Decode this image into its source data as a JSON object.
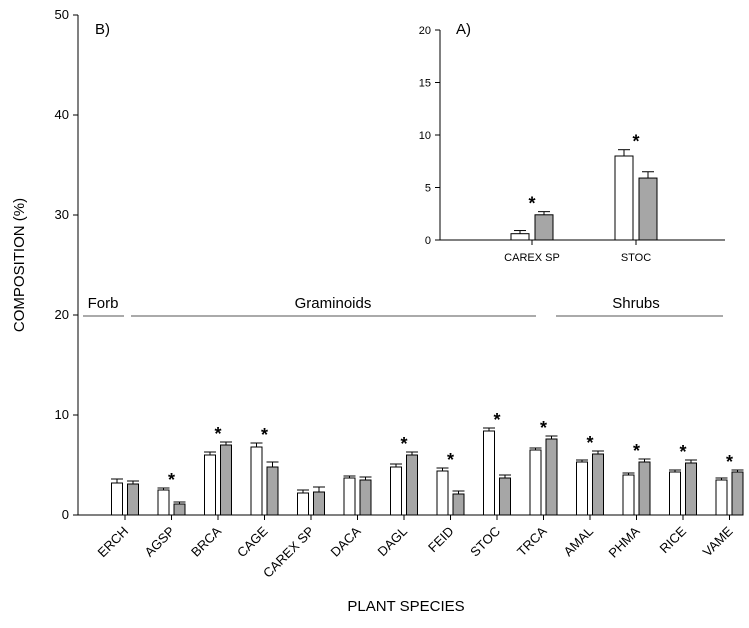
{
  "colors": {
    "group_a_fill": "#ffffff",
    "group_b_fill": "#a6a6a6",
    "axis": "#000000"
  },
  "chart_data": [
    {
      "panel": "B)",
      "type": "bar",
      "xlabel": "PLANT SPECIES",
      "ylabel": "COMPOSITION (%)",
      "ylim": [
        0,
        50
      ],
      "yticks": [
        0,
        10,
        20,
        30,
        40,
        50
      ],
      "grid": false,
      "categories": [
        "ERCH",
        "AGSP",
        "BRCA",
        "CAGE",
        "CAREX SP",
        "DACA",
        "DAGL",
        "FEID",
        "STOC",
        "TRCA",
        "AMAL",
        "PHMA",
        "RICE",
        "VAME"
      ],
      "series": [
        {
          "fill": "#ffffff",
          "values": [
            3.2,
            2.5,
            6.0,
            6.8,
            2.2,
            3.7,
            4.8,
            4.4,
            8.4,
            6.5,
            5.3,
            4.0,
            4.3,
            3.5
          ],
          "errors": [
            0.4,
            0.2,
            0.3,
            0.4,
            0.3,
            0.2,
            0.3,
            0.3,
            0.3,
            0.2,
            0.2,
            0.2,
            0.2,
            0.2
          ]
        },
        {
          "fill": "#a6a6a6",
          "values": [
            3.1,
            1.1,
            7.0,
            4.8,
            2.3,
            3.5,
            6.0,
            2.1,
            3.7,
            7.6,
            6.1,
            5.3,
            5.2,
            4.3
          ],
          "errors": [
            0.3,
            0.2,
            0.3,
            0.5,
            0.5,
            0.3,
            0.3,
            0.3,
            0.3,
            0.3,
            0.3,
            0.3,
            0.3,
            0.2
          ]
        }
      ],
      "significant": [
        false,
        true,
        true,
        true,
        false,
        false,
        true,
        true,
        true,
        true,
        true,
        true,
        true,
        true
      ],
      "significance_marker": "*",
      "groups": [
        {
          "label": "Forb",
          "from": 0,
          "to": 0
        },
        {
          "label": "Graminoids",
          "from": 1,
          "to": 9
        },
        {
          "label": "Shrubs",
          "from": 10,
          "to": 13
        }
      ]
    },
    {
      "panel": "A)",
      "type": "bar",
      "ylim": [
        0,
        20
      ],
      "yticks": [
        0,
        5,
        10,
        15,
        20
      ],
      "categories": [
        "CAREX SP",
        "STOC"
      ],
      "series": [
        {
          "fill": "#ffffff",
          "values": [
            0.6,
            8.0
          ],
          "errors": [
            0.3,
            0.6
          ]
        },
        {
          "fill": "#a6a6a6",
          "values": [
            2.4,
            5.9
          ],
          "errors": [
            0.3,
            0.6
          ]
        }
      ],
      "significant": [
        true,
        true
      ],
      "significance_marker": "*"
    }
  ]
}
